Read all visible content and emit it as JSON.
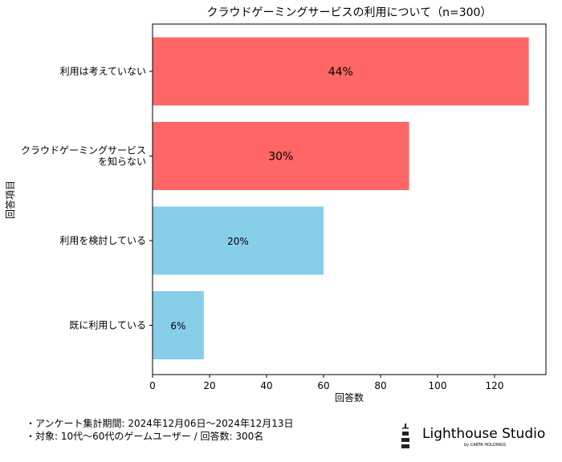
{
  "chart_data": {
    "type": "bar",
    "orientation": "horizontal",
    "title": "クラウドゲーミングサービスの利用について（n=300）",
    "xlabel": "回答数",
    "ylabel": "回答項目",
    "categories": [
      "利用は考えていない",
      "クラウドゲーミングサービス\nを知らない",
      "利用を検討している",
      "既に利用している"
    ],
    "values": [
      132,
      90,
      60,
      18
    ],
    "data_labels": [
      "44%",
      "30%",
      "20%",
      "6%"
    ],
    "colors": [
      "#ff6666",
      "#ff6666",
      "#87ceeb",
      "#87ceeb"
    ],
    "xlim": [
      0,
      138
    ],
    "xticks": [
      0,
      20,
      40,
      60,
      80,
      100,
      120
    ],
    "grid": false,
    "legend": "none"
  },
  "footer": {
    "lines": [
      "・アンケート集計期間: 2024年12月06日〜2024年12月13日",
      "・対象: 10代〜60代のゲームユーザー / 回答数: 300名"
    ]
  },
  "logo": {
    "name": "Lighthouse Studio",
    "sub": "by CARTA HOLDINGS"
  }
}
